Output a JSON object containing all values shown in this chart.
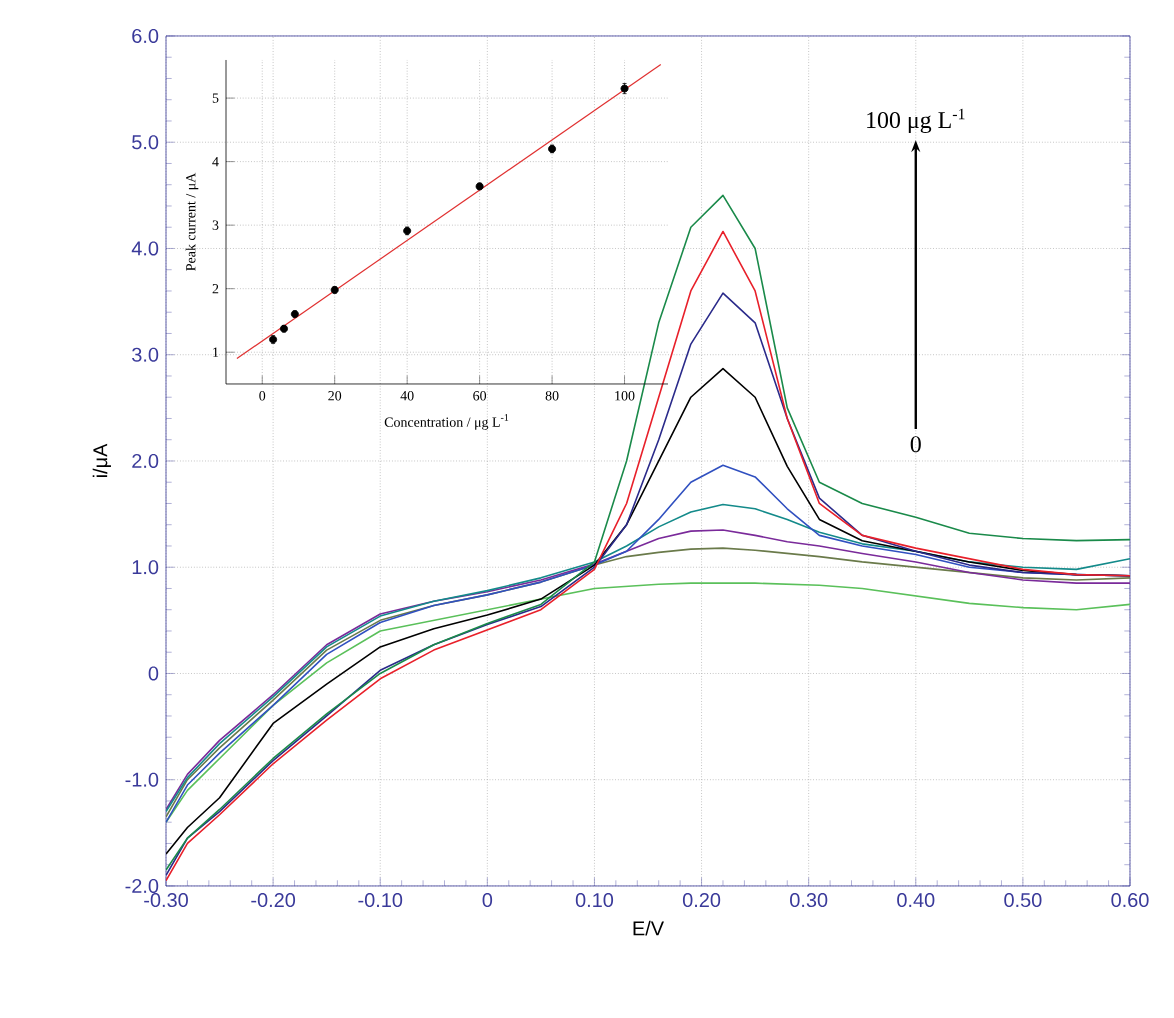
{
  "chart_data": [
    {
      "type": "line",
      "xlabel": "E/V",
      "ylabel": "i/μA",
      "xlim": [
        -0.3,
        0.6
      ],
      "ylim": [
        -2.0,
        6.0
      ],
      "xticks": [
        {
          "value": -0.3,
          "label": "-0.30"
        },
        {
          "value": -0.2,
          "label": "-0.20"
        },
        {
          "value": -0.1,
          "label": "-0.10"
        },
        0,
        {
          "value": 0.1,
          "label": "0.10"
        },
        {
          "value": 0.2,
          "label": "0.20"
        },
        {
          "value": 0.3,
          "label": "0.30"
        },
        {
          "value": 0.4,
          "label": "0.40"
        },
        {
          "value": 0.5,
          "label": "0.50"
        },
        {
          "value": 0.6,
          "label": "0.60"
        }
      ],
      "yticks": [
        {
          "value": -2,
          "label": "-2.0"
        },
        {
          "value": -1,
          "label": "-1.0"
        },
        0,
        {
          "value": 1,
          "label": "1.0"
        },
        {
          "value": 2,
          "label": "2.0"
        },
        {
          "value": 3,
          "label": "3.0"
        },
        {
          "value": 4,
          "label": "4.0"
        },
        {
          "value": 5,
          "label": "5.0"
        },
        {
          "value": 6,
          "label": "6.0"
        }
      ],
      "grid": true,
      "line_style": "solid",
      "annotations": [
        "100 μg L$^{-1}$",
        "0"
      ],
      "x": [
        -0.3,
        -0.28,
        -0.25,
        -0.2,
        -0.15,
        -0.1,
        -0.05,
        0,
        0.05,
        0.1,
        0.13,
        0.16,
        0.19,
        0.22,
        0.25,
        0.28,
        0.31,
        0.35,
        0.4,
        0.45,
        0.5,
        0.55,
        0.6
      ],
      "series": [
        {
          "color": "#5ac05a",
          "values": [
            -1.4,
            -1.1,
            -0.8,
            -0.3,
            0.1,
            0.4,
            0.5,
            0.6,
            0.7,
            0.8,
            0.82,
            0.84,
            0.85,
            0.85,
            0.85,
            0.84,
            0.83,
            0.8,
            0.73,
            0.66,
            0.62,
            0.6,
            0.65
          ]
        },
        {
          "color": "#6a7a4a",
          "values": [
            -1.35,
            -1.0,
            -0.7,
            -0.25,
            0.22,
            0.5,
            0.64,
            0.74,
            0.86,
            1.02,
            1.1,
            1.14,
            1.17,
            1.18,
            1.16,
            1.13,
            1.1,
            1.05,
            1.0,
            0.95,
            0.9,
            0.88,
            0.9
          ]
        },
        {
          "color": "#7a2a9a",
          "values": [
            -1.28,
            -0.95,
            -0.63,
            -0.2,
            0.27,
            0.56,
            0.68,
            0.77,
            0.88,
            1.03,
            1.15,
            1.27,
            1.34,
            1.35,
            1.3,
            1.24,
            1.2,
            1.13,
            1.05,
            0.95,
            0.88,
            0.85,
            0.85
          ]
        },
        {
          "color": "#138a8a",
          "values": [
            -1.3,
            -0.98,
            -0.66,
            -0.22,
            0.25,
            0.54,
            0.68,
            0.78,
            0.9,
            1.05,
            1.2,
            1.38,
            1.52,
            1.59,
            1.55,
            1.45,
            1.33,
            1.22,
            1.15,
            1.05,
            1.0,
            0.98,
            1.08
          ]
        },
        {
          "color": "#3050c0",
          "values": [
            -1.4,
            -1.05,
            -0.75,
            -0.3,
            0.18,
            0.48,
            0.64,
            0.74,
            0.86,
            1.02,
            1.15,
            1.45,
            1.8,
            1.96,
            1.85,
            1.55,
            1.3,
            1.2,
            1.12,
            1.0,
            0.95,
            0.93,
            0.92
          ]
        },
        {
          "color": "#000000",
          "values": [
            -1.7,
            -1.45,
            -1.17,
            -0.47,
            -0.1,
            0.25,
            0.42,
            0.55,
            0.7,
            1.02,
            1.4,
            2.0,
            2.6,
            2.87,
            2.6,
            1.95,
            1.45,
            1.25,
            1.15,
            1.05,
            0.97,
            0.93,
            0.92
          ]
        },
        {
          "color": "#2a2a8a",
          "values": [
            -1.9,
            -1.55,
            -1.3,
            -0.82,
            -0.4,
            0.03,
            0.27,
            0.46,
            0.63,
            1.0,
            1.4,
            2.2,
            3.1,
            3.58,
            3.3,
            2.4,
            1.65,
            1.3,
            1.15,
            1.02,
            0.95,
            0.93,
            0.92
          ]
        },
        {
          "color": "#e8202a",
          "values": [
            -1.95,
            -1.6,
            -1.33,
            -0.85,
            -0.44,
            -0.05,
            0.22,
            0.41,
            0.6,
            0.98,
            1.6,
            2.6,
            3.6,
            4.16,
            3.6,
            2.4,
            1.6,
            1.3,
            1.18,
            1.08,
            0.98,
            0.93,
            0.92
          ]
        },
        {
          "color": "#1a8a4a",
          "values": [
            -1.85,
            -1.55,
            -1.28,
            -0.8,
            -0.38,
            0.0,
            0.27,
            0.47,
            0.65,
            1.05,
            2.0,
            3.3,
            4.2,
            4.5,
            4.0,
            2.5,
            1.8,
            1.6,
            1.47,
            1.32,
            1.27,
            1.25,
            1.26
          ]
        }
      ]
    },
    {
      "type": "scatter",
      "xlabel": "Concentration / μg L$^{-1}$",
      "ylabel": "Peak current / μA",
      "xlim": [
        -10,
        112
      ],
      "ylim": [
        0.5,
        5.6
      ],
      "xticks": [
        0,
        20,
        40,
        60,
        80,
        100
      ],
      "yticks": [
        1,
        2,
        3,
        4,
        5
      ],
      "grid": true,
      "marker": "circle",
      "x": [
        3,
        6,
        9,
        20,
        40,
        60,
        80,
        100
      ],
      "series": [
        {
          "color": "#000000",
          "values": [
            1.2,
            1.37,
            1.6,
            1.98,
            2.91,
            3.61,
            4.2,
            5.15
          ],
          "errors": [
            0.06,
            0.05,
            0.05,
            0.05,
            0.06,
            0.05,
            0.06,
            0.08
          ]
        },
        {
          "type": "line",
          "marker": "none",
          "color": "#e03030",
          "x": [
            -7,
            110
          ],
          "values": [
            0.9,
            5.53
          ]
        }
      ]
    }
  ]
}
